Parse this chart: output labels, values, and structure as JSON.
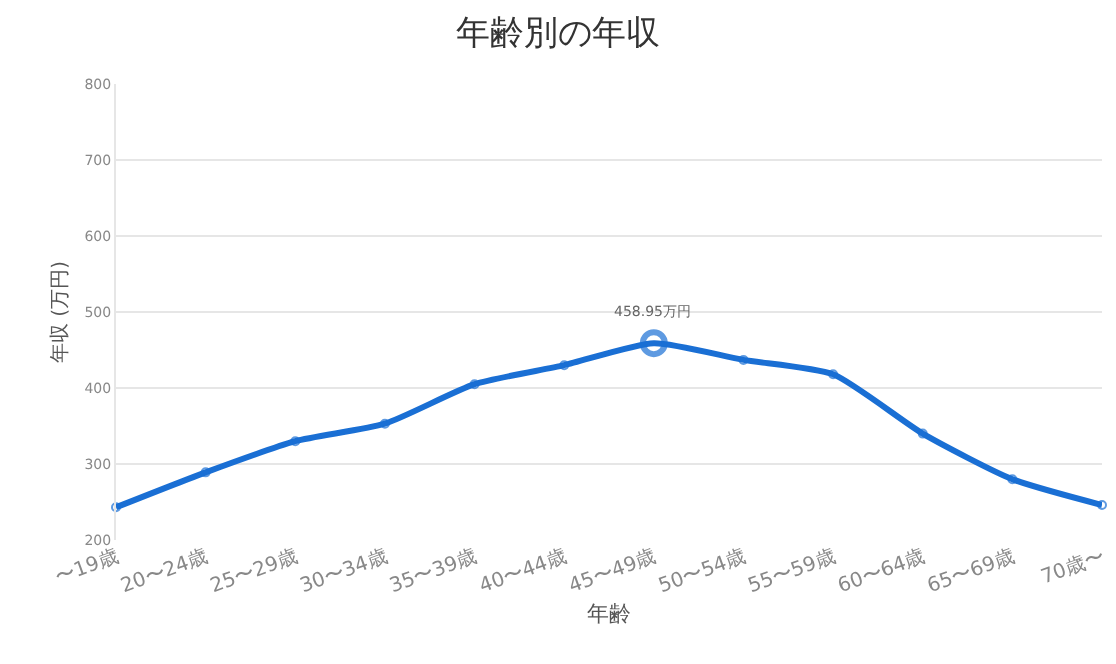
{
  "chart_data": {
    "type": "line",
    "title": "年齢別の年収",
    "xlabel": "年齢",
    "ylabel": "年収 (万円)",
    "categories": [
      "〜19歳",
      "20〜24歳",
      "25〜29歳",
      "30〜34歳",
      "35〜39歳",
      "40〜44歳",
      "45〜49歳",
      "50〜54歳",
      "55〜59歳",
      "60〜64歳",
      "65〜69歳",
      "70歳〜"
    ],
    "series": [
      {
        "color": "#1a6fd4",
        "values": [
          243,
          289,
          330,
          353,
          405,
          430,
          458.95,
          437,
          418,
          340,
          280,
          246
        ]
      }
    ],
    "ylim": [
      200,
      800
    ],
    "yticks": [
      200,
      300,
      400,
      500,
      600,
      700,
      800
    ],
    "grid": "y",
    "marker": "circle",
    "line_style": "solid",
    "annotations": [
      {
        "text": "458.95万円",
        "x": "45〜49歳",
        "y": 458.95
      }
    ]
  }
}
